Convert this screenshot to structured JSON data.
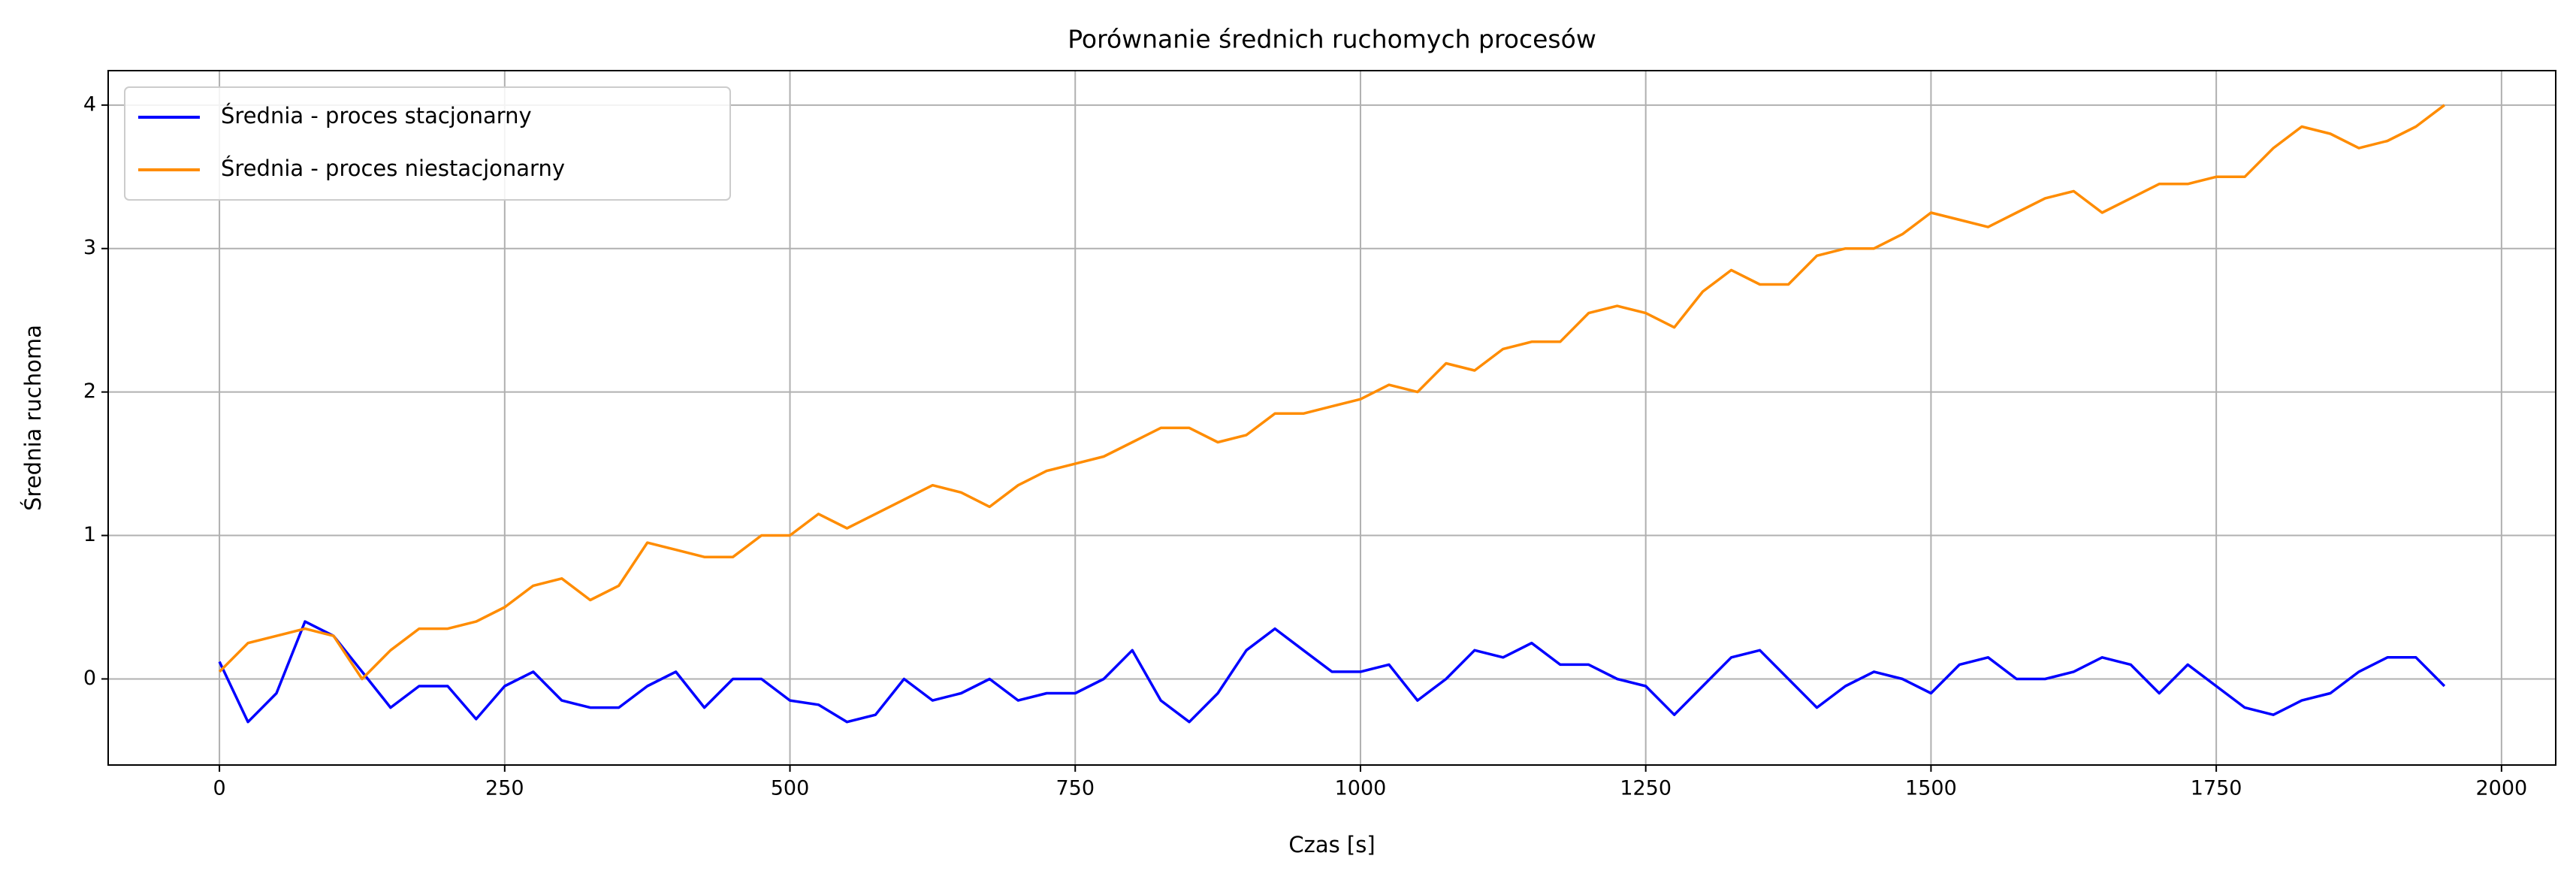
{
  "chart_data": {
    "type": "line",
    "title": "Porównanie średnich ruchomych procesów",
    "xlabel": "Czas [s]",
    "ylabel": "Średnia ruchoma",
    "x": [
      0,
      25,
      50,
      75,
      100,
      125,
      150,
      175,
      200,
      225,
      250,
      275,
      300,
      325,
      350,
      375,
      400,
      425,
      450,
      475,
      500,
      525,
      550,
      575,
      600,
      625,
      650,
      675,
      700,
      725,
      750,
      775,
      800,
      825,
      850,
      875,
      900,
      925,
      950,
      975,
      1000,
      1025,
      1050,
      1075,
      1100,
      1125,
      1150,
      1175,
      1200,
      1225,
      1250,
      1275,
      1300,
      1325,
      1350,
      1375,
      1400,
      1425,
      1450,
      1475,
      1500,
      1525,
      1550,
      1575,
      1600,
      1625,
      1650,
      1675,
      1700,
      1725,
      1750,
      1775,
      1800,
      1825,
      1850,
      1875,
      1900,
      1925,
      1950
    ],
    "series": [
      {
        "name": "Średnia - proces stacjonarny",
        "color": "#0000ff",
        "values": [
          0.12,
          -0.3,
          -0.1,
          0.4,
          0.3,
          0.05,
          -0.2,
          -0.05,
          -0.05,
          -0.28,
          -0.05,
          0.05,
          -0.15,
          -0.2,
          -0.2,
          -0.05,
          0.05,
          -0.2,
          0.0,
          0.0,
          -0.15,
          -0.18,
          -0.3,
          -0.25,
          0.0,
          -0.15,
          -0.1,
          0.0,
          -0.15,
          -0.1,
          -0.1,
          0.0,
          0.2,
          -0.15,
          -0.3,
          -0.1,
          0.2,
          0.35,
          0.2,
          0.05,
          0.05,
          0.1,
          -0.15,
          0.0,
          0.2,
          0.15,
          0.25,
          0.1,
          0.1,
          0.0,
          -0.05,
          -0.25,
          -0.05,
          0.15,
          0.2,
          0.0,
          -0.2,
          -0.05,
          0.05,
          0.0,
          -0.1,
          0.1,
          0.15,
          0.0,
          0.0,
          0.05,
          0.15,
          0.1,
          -0.1,
          0.1,
          -0.05,
          -0.2,
          -0.25,
          -0.15,
          -0.1,
          0.05,
          0.15,
          0.15,
          -0.05
        ]
      },
      {
        "name": "Średnia - proces niestacjonarny",
        "color": "#ff8c00",
        "values": [
          0.05,
          0.25,
          0.3,
          0.35,
          0.3,
          0.0,
          0.2,
          0.35,
          0.35,
          0.4,
          0.5,
          0.65,
          0.7,
          0.55,
          0.65,
          0.95,
          0.9,
          0.85,
          0.85,
          1.0,
          1.0,
          1.15,
          1.05,
          1.15,
          1.25,
          1.35,
          1.3,
          1.2,
          1.35,
          1.45,
          1.5,
          1.55,
          1.65,
          1.75,
          1.75,
          1.65,
          1.7,
          1.85,
          1.85,
          1.9,
          1.95,
          2.05,
          2.0,
          2.2,
          2.15,
          2.3,
          2.35,
          2.35,
          2.55,
          2.6,
          2.55,
          2.45,
          2.7,
          2.85,
          2.75,
          2.75,
          2.95,
          3.0,
          3.0,
          3.1,
          3.25,
          3.2,
          3.15,
          3.25,
          3.35,
          3.4,
          3.25,
          3.35,
          3.45,
          3.45,
          3.5,
          3.5,
          3.7,
          3.85,
          3.8,
          3.7,
          3.75,
          3.85,
          4.0
        ]
      }
    ],
    "xlim": [
      -97.5,
      2047.5
    ],
    "xticks": [
      0,
      250,
      500,
      750,
      1000,
      1250,
      1500,
      1750,
      2000
    ],
    "ylim": [
      -0.6,
      4.24
    ],
    "yticks": [
      0,
      1,
      2,
      3,
      4
    ],
    "grid": true,
    "legend": "upper left"
  }
}
